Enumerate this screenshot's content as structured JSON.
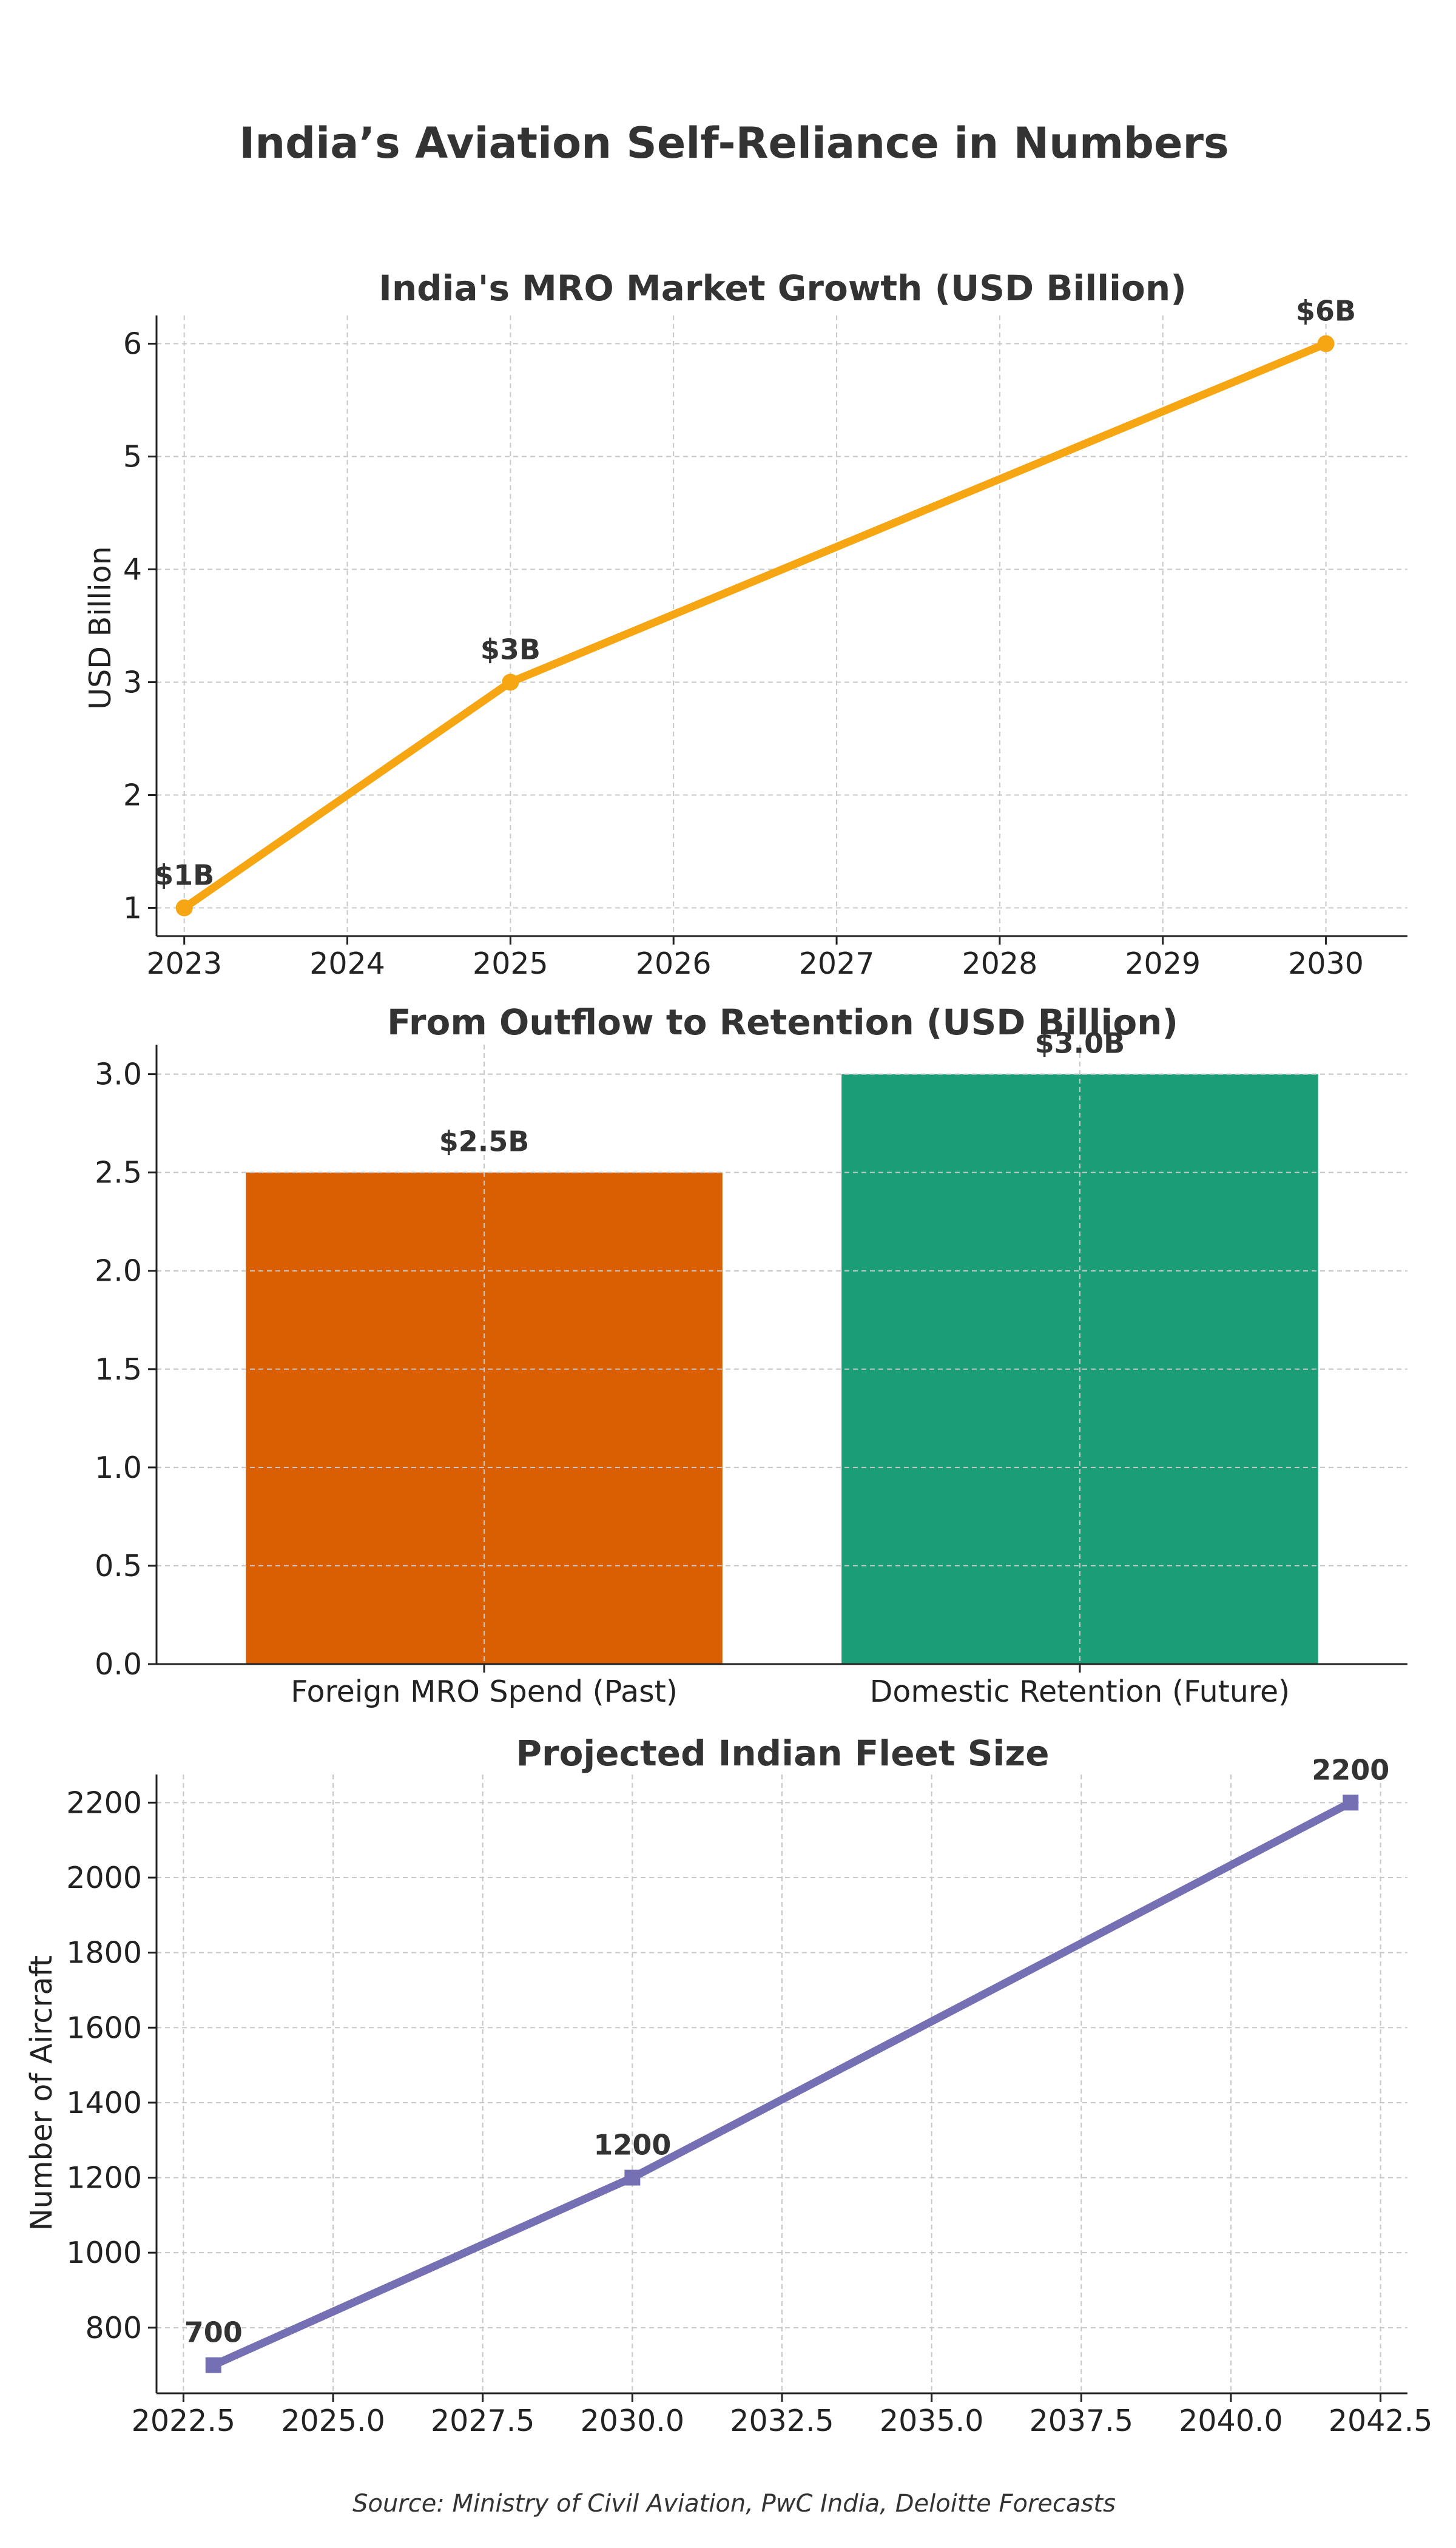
{
  "page": {
    "title": "India’s Aviation Self-Reliance in Numbers",
    "source": "Source: Ministry of Civil Aviation, PwC India, Deloitte Forecasts"
  },
  "chart_data": [
    {
      "type": "line",
      "title": "India's MRO Market Growth (USD Billion)",
      "xlabel": "",
      "ylabel": "USD Billion",
      "x": [
        2023,
        2025,
        2030
      ],
      "series": [
        {
          "values": [
            1,
            3,
            6
          ],
          "color": "#F7A613",
          "marker": "circle",
          "labels": [
            "$1B",
            "$3B",
            "$6B"
          ]
        }
      ],
      "xticks": [
        2023,
        2024,
        2025,
        2026,
        2027,
        2028,
        2029,
        2030
      ],
      "yticks": [
        1,
        2,
        3,
        4,
        5,
        6
      ],
      "xlim": [
        2022.83,
        2030.5
      ],
      "ylim": [
        0.75,
        6.25
      ],
      "grid": true,
      "legend": "none"
    },
    {
      "type": "bar",
      "title": "From Outflow to Retention (USD Billion)",
      "xlabel": "",
      "ylabel": "",
      "categories": [
        "Foreign MRO Spend (Past)",
        "Domestic Retention (Future)"
      ],
      "values": [
        2.5,
        3.0
      ],
      "labels": [
        "$2.5B",
        "$3.0B"
      ],
      "colors": [
        "#D95F02",
        "#1B9E77"
      ],
      "yticks": [
        "0.0",
        "0.5",
        "1.0",
        "1.5",
        "2.0",
        "2.5",
        "3.0"
      ],
      "ylim": [
        0,
        3.15
      ],
      "grid": true,
      "legend": "none"
    },
    {
      "type": "line",
      "title": "Projected Indian Fleet Size",
      "xlabel": "",
      "ylabel": "Number of Aircraft",
      "x": [
        2023,
        2030,
        2042
      ],
      "series": [
        {
          "values": [
            700,
            1200,
            2200
          ],
          "color": "#7570B3",
          "marker": "square",
          "labels": [
            "700",
            "1200",
            "2200"
          ]
        }
      ],
      "xticks": [
        "2022.5",
        "2025.0",
        "2027.5",
        "2030.0",
        "2032.5",
        "2035.0",
        "2037.5",
        "2040.0",
        "2042.5"
      ],
      "yticks": [
        800,
        1000,
        1200,
        1400,
        1600,
        1800,
        2000,
        2200
      ],
      "xlim": [
        2022.05,
        2042.95
      ],
      "ylim": [
        625,
        2275
      ],
      "grid": true,
      "legend": "none"
    }
  ]
}
